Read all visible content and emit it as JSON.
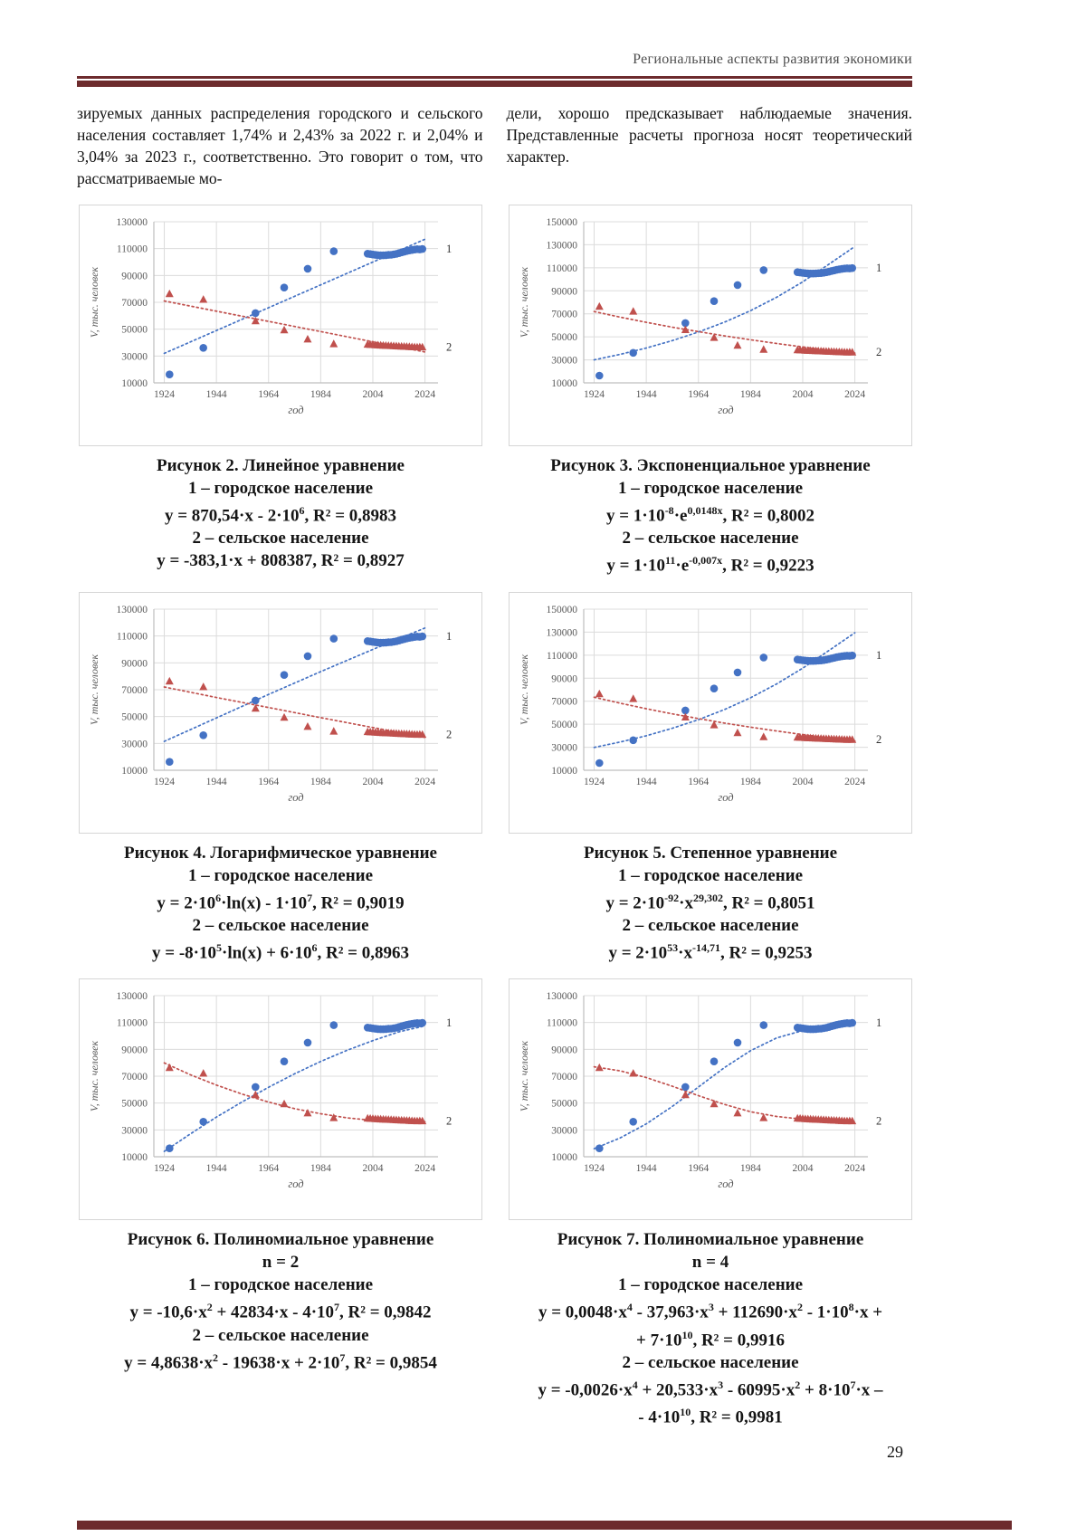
{
  "page": {
    "header": "Региональные аспекты развития экономики",
    "page_number": "29",
    "accent_color": "#6d2b2d"
  },
  "intro": {
    "left_column": "зируемых данных распределения городского и сельского населения составляет 1,74% и 2,43% за 2022 г. и 2,04% и 3,04% за 2023 г., соответственно. Это говорит о том, что рассматриваемые мо-",
    "right_column": "дели, хорошо предсказывает наблюдаемые значения. Представленные расчеты прогноза носят теоретический характер."
  },
  "colors": {
    "urban": "#4472c4",
    "rural": "#c0504d",
    "grid": "#dcdcdc",
    "axis": "#bfbfbf",
    "tick_text": "#595959",
    "end_label": "#303030"
  },
  "observations": {
    "urban": {
      "label": "городское население",
      "marker": "circle",
      "end_label": "1",
      "points": [
        [
          1926,
          16300
        ],
        [
          1939,
          36100
        ],
        [
          1959,
          62000
        ],
        [
          1970,
          81000
        ],
        [
          1979,
          95000
        ],
        [
          1989,
          108000
        ],
        [
          2002,
          106200
        ],
        [
          2003,
          105900
        ],
        [
          2004,
          105600
        ],
        [
          2005,
          105300
        ],
        [
          2006,
          105100
        ],
        [
          2007,
          105000
        ],
        [
          2008,
          105000
        ],
        [
          2009,
          105100
        ],
        [
          2010,
          105300
        ],
        [
          2011,
          105400
        ],
        [
          2012,
          105700
        ],
        [
          2013,
          106100
        ],
        [
          2014,
          106600
        ],
        [
          2015,
          107200
        ],
        [
          2016,
          107700
        ],
        [
          2017,
          108200
        ],
        [
          2018,
          108600
        ],
        [
          2019,
          109000
        ],
        [
          2020,
          109300
        ],
        [
          2021,
          109600
        ],
        [
          2022,
          109400
        ],
        [
          2023,
          109700
        ]
      ]
    },
    "rural": {
      "label": "сельское население",
      "marker": "triangle",
      "end_label": "2",
      "points": [
        [
          1926,
          76300
        ],
        [
          1939,
          72100
        ],
        [
          1959,
          56100
        ],
        [
          1970,
          49300
        ],
        [
          1979,
          42500
        ],
        [
          1989,
          39000
        ],
        [
          2002,
          38600
        ],
        [
          2003,
          38500
        ],
        [
          2004,
          38400
        ],
        [
          2005,
          38200
        ],
        [
          2006,
          38100
        ],
        [
          2007,
          38000
        ],
        [
          2008,
          37900
        ],
        [
          2009,
          37800
        ],
        [
          2010,
          37700
        ],
        [
          2011,
          37600
        ],
        [
          2012,
          37500
        ],
        [
          2013,
          37400
        ],
        [
          2014,
          37300
        ],
        [
          2015,
          37200
        ],
        [
          2016,
          37100
        ],
        [
          2017,
          37000
        ],
        [
          2018,
          36900
        ],
        [
          2019,
          36800
        ],
        [
          2020,
          36700
        ],
        [
          2021,
          36600
        ],
        [
          2022,
          36700
        ],
        [
          2023,
          36600
        ]
      ]
    }
  },
  "chart_data": [
    {
      "name": "Линейное уравнение",
      "type": "scatter",
      "trend_type": "linear",
      "xlabel": "год",
      "ylabel": "V, тыс. человек",
      "xlim": [
        1920,
        2029
      ],
      "ylim": [
        10000,
        130000
      ],
      "xticks": [
        1924,
        1944,
        1964,
        1984,
        2004,
        2024
      ],
      "yticks": [
        10000,
        30000,
        50000,
        70000,
        90000,
        110000,
        130000
      ],
      "trend_urban": [
        [
          1924,
          32000
        ],
        [
          2024,
          117000
        ]
      ],
      "trend_rural": [
        [
          1924,
          71000
        ],
        [
          2024,
          33000
        ]
      ]
    },
    {
      "name": "Экспоненциальное уравнение",
      "type": "scatter",
      "trend_type": "exponential",
      "xlabel": "год",
      "ylabel": "V, тыс. человек",
      "xlim": [
        1920,
        2029
      ],
      "ylim": [
        10000,
        150000
      ],
      "xticks": [
        1924,
        1944,
        1964,
        1984,
        2004,
        2024
      ],
      "yticks": [
        10000,
        30000,
        50000,
        70000,
        90000,
        110000,
        130000,
        150000
      ],
      "trend_urban": [
        [
          1924,
          30000
        ],
        [
          1934,
          34800
        ],
        [
          1944,
          40300
        ],
        [
          1954,
          46700
        ],
        [
          1964,
          54200
        ],
        [
          1974,
          62800
        ],
        [
          1984,
          72800
        ],
        [
          1994,
          84400
        ],
        [
          2004,
          97800
        ],
        [
          2014,
          113000
        ],
        [
          2024,
          128500
        ]
      ],
      "trend_rural": [
        [
          1924,
          72000
        ],
        [
          1934,
          67100
        ],
        [
          1944,
          62600
        ],
        [
          1954,
          58400
        ],
        [
          1964,
          54500
        ],
        [
          1974,
          50800
        ],
        [
          1984,
          47400
        ],
        [
          1994,
          44200
        ],
        [
          2004,
          41200
        ],
        [
          2014,
          38400
        ],
        [
          2024,
          35900
        ]
      ]
    },
    {
      "name": "Логарифмическое уравнение",
      "type": "scatter",
      "trend_type": "logarithmic",
      "xlabel": "год",
      "ylabel": "V, тыс. человек",
      "xlim": [
        1920,
        2029
      ],
      "ylim": [
        10000,
        130000
      ],
      "xticks": [
        1924,
        1944,
        1964,
        1984,
        2004,
        2024
      ],
      "yticks": [
        10000,
        30000,
        50000,
        70000,
        90000,
        110000,
        130000
      ],
      "trend_urban": [
        [
          1924,
          31500
        ],
        [
          1944,
          49000
        ],
        [
          1964,
          66500
        ],
        [
          1984,
          83500
        ],
        [
          2004,
          100000
        ],
        [
          2024,
          116000
        ]
      ],
      "trend_rural": [
        [
          1924,
          72000
        ],
        [
          1944,
          64200
        ],
        [
          1964,
          56700
        ],
        [
          1984,
          49200
        ],
        [
          2004,
          41800
        ],
        [
          2024,
          34500
        ]
      ]
    },
    {
      "name": "Степенное уравнение",
      "type": "scatter",
      "trend_type": "power",
      "xlabel": "год",
      "ylabel": "V, тыс. человек",
      "xlim": [
        1920,
        2029
      ],
      "ylim": [
        10000,
        150000
      ],
      "xticks": [
        1924,
        1944,
        1964,
        1984,
        2004,
        2024
      ],
      "yticks": [
        10000,
        30000,
        50000,
        70000,
        90000,
        110000,
        130000,
        150000
      ],
      "trend_urban": [
        [
          1924,
          29800
        ],
        [
          1934,
          34500
        ],
        [
          1944,
          40000
        ],
        [
          1954,
          46500
        ],
        [
          1964,
          54000
        ],
        [
          1974,
          62800
        ],
        [
          1984,
          73000
        ],
        [
          1994,
          85000
        ],
        [
          2004,
          98700
        ],
        [
          2014,
          114000
        ],
        [
          2024,
          129500
        ]
      ],
      "trend_rural": [
        [
          1924,
          73500
        ],
        [
          1934,
          68300
        ],
        [
          1944,
          63500
        ],
        [
          1954,
          59000
        ],
        [
          1964,
          54900
        ],
        [
          1974,
          51000
        ],
        [
          1984,
          47400
        ],
        [
          1994,
          44100
        ],
        [
          2004,
          41000
        ],
        [
          2014,
          38100
        ],
        [
          2024,
          35500
        ]
      ]
    },
    {
      "name": "Полиномиальное уравнение n = 2",
      "type": "scatter",
      "trend_type": "polynomial-2",
      "xlabel": "год",
      "ylabel": "V, тыс. человек",
      "xlim": [
        1920,
        2029
      ],
      "ylim": [
        10000,
        130000
      ],
      "xticks": [
        1924,
        1944,
        1964,
        1984,
        2004,
        2024
      ],
      "yticks": [
        10000,
        30000,
        50000,
        70000,
        90000,
        110000,
        130000
      ],
      "trend_urban": [
        [
          1924,
          14000
        ],
        [
          1934,
          27000
        ],
        [
          1944,
          39500
        ],
        [
          1954,
          51000
        ],
        [
          1964,
          61800
        ],
        [
          1974,
          71800
        ],
        [
          1984,
          81000
        ],
        [
          1994,
          89200
        ],
        [
          2004,
          96500
        ],
        [
          2014,
          103000
        ],
        [
          2024,
          107500
        ]
      ],
      "trend_rural": [
        [
          1924,
          79900
        ],
        [
          1934,
          71100
        ],
        [
          1944,
          63400
        ],
        [
          1954,
          56600
        ],
        [
          1964,
          50700
        ],
        [
          1974,
          45800
        ],
        [
          1984,
          42000
        ],
        [
          1994,
          39000
        ],
        [
          2004,
          37100
        ],
        [
          2014,
          36100
        ],
        [
          2024,
          36100
        ]
      ]
    },
    {
      "name": "Полиномиальное уравнение n = 4",
      "type": "scatter",
      "trend_type": "polynomial-4",
      "xlabel": "год",
      "ylabel": "V, тыс. человек",
      "xlim": [
        1920,
        2029
      ],
      "ylim": [
        10000,
        130000
      ],
      "xticks": [
        1924,
        1944,
        1964,
        1984,
        2004,
        2024
      ],
      "yticks": [
        10000,
        30000,
        50000,
        70000,
        90000,
        110000,
        130000
      ],
      "trend_urban": [
        [
          1924,
          16000
        ],
        [
          1934,
          24000
        ],
        [
          1944,
          34500
        ],
        [
          1954,
          47500
        ],
        [
          1964,
          62000
        ],
        [
          1974,
          76500
        ],
        [
          1984,
          89000
        ],
        [
          1994,
          98500
        ],
        [
          2004,
          104000
        ],
        [
          2014,
          105500
        ],
        [
          2024,
          110000
        ]
      ],
      "trend_rural": [
        [
          1924,
          77000
        ],
        [
          1934,
          74000
        ],
        [
          1944,
          69000
        ],
        [
          1954,
          62500
        ],
        [
          1964,
          55500
        ],
        [
          1974,
          49000
        ],
        [
          1984,
          43500
        ],
        [
          1994,
          40000
        ],
        [
          2004,
          38000
        ],
        [
          2014,
          37000
        ],
        [
          2024,
          37000
        ]
      ]
    }
  ],
  "figures": [
    {
      "caption_lines": [
        "Рисунок 2. Линейное уравнение",
        "1 – городское население",
        "y = 870,54·x - 2·10^{6}, R² = 0,8983",
        "2 – сельское население",
        "y = -383,1·x + 808387, R² = 0,8927"
      ]
    },
    {
      "caption_lines": [
        "Рисунок 3. Экспоненциальное уравнение",
        "1 – городское население",
        "y = 1·10^{-8}·e^{0,0148x}, R² = 0,8002",
        "2 – сельское население",
        "y = 1·10^{11}·e^{-0,007x}, R² = 0,9223"
      ]
    },
    {
      "caption_lines": [
        "Рисунок 4. Логарифмическое уравнение",
        "1 – городское население",
        "y = 2·10^{6}·ln(x) - 1·10^{7}, R² = 0,9019",
        "2 – сельское население",
        "y = -8·10^{5}·ln(x) + 6·10^{6}, R² = 0,8963"
      ]
    },
    {
      "caption_lines": [
        "Рисунок 5. Степенное уравнение",
        "1 – городское население",
        "y = 2·10^{-92}·x^{29,302}, R² = 0,8051",
        "2 – сельское население",
        "y = 2·10^{53}·x^{-14,71}, R² = 0,9253"
      ]
    },
    {
      "caption_lines": [
        "Рисунок 6. Полиномиальное уравнение",
        "n = 2",
        "1 – городское население",
        "y = -10,6·x^{2} + 42834·x - 4·10^{7}, R² = 0,9842",
        "2 – сельское население",
        "y = 4,8638·x^{2} - 19638·x + 2·10^{7}, R² = 0,9854"
      ]
    },
    {
      "caption_lines": [
        "Рисунок 7. Полиномиальное уравнение",
        "n = 4",
        "1 – городское население",
        "y = 0,0048·x^{4} - 37,963·x^{3} + 112690·x^{2} - 1·10^{8}·x +",
        "+ 7·10^{10}, R² = 0,9916",
        "2 – сельское население",
        "y = -0,0026·x^{4} + 20,533·x^{3} - 60995·x^{2} + 8·10^{7}·x –",
        "- 4·10^{10}, R² = 0,9981"
      ]
    }
  ]
}
